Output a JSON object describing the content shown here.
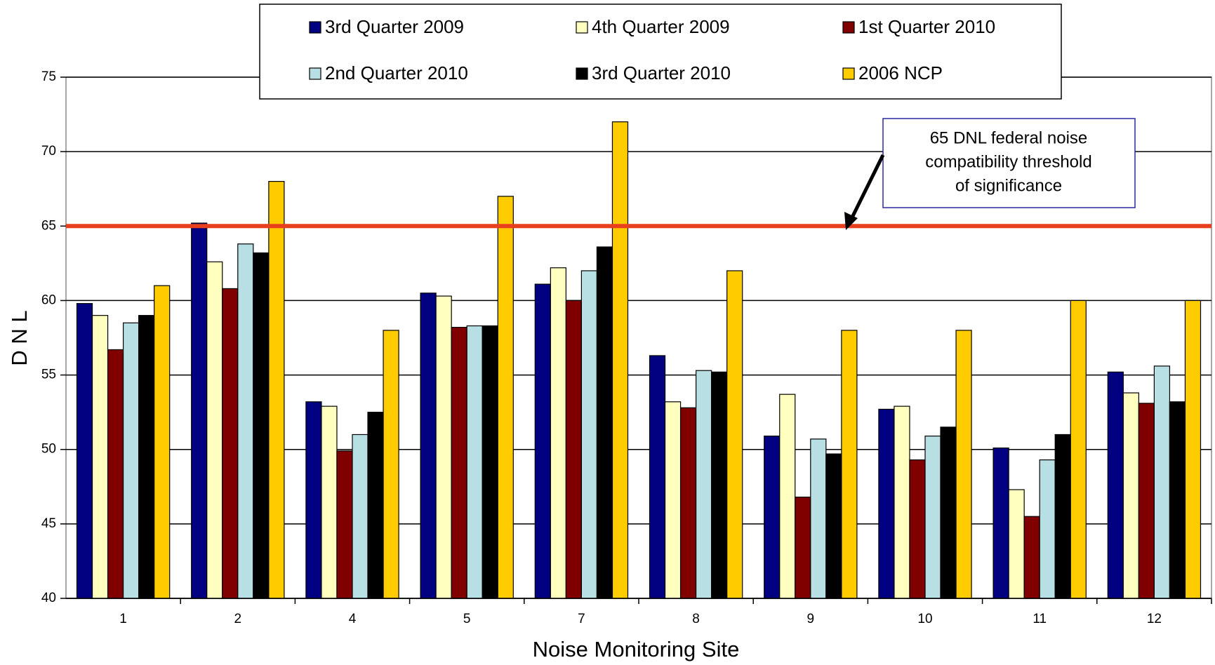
{
  "chart_data": {
    "type": "bar",
    "x_label": "Noise Monitoring Site",
    "y_label": "D N L",
    "categories": [
      "1",
      "2",
      "4",
      "5",
      "7",
      "8",
      "9",
      "10",
      "11",
      "12"
    ],
    "series": [
      {
        "name": "3rd Quarter 2009",
        "color": "#000080",
        "values": [
          59.8,
          65.2,
          53.2,
          60.5,
          61.1,
          56.3,
          50.9,
          52.7,
          50.1,
          55.2
        ]
      },
      {
        "name": "4th Quarter 2009",
        "color": "#ffffc0",
        "values": [
          59.0,
          62.6,
          52.9,
          60.3,
          62.2,
          53.2,
          53.7,
          52.9,
          47.3,
          53.8
        ]
      },
      {
        "name": "1st Quarter 2010",
        "color": "#800000",
        "values": [
          56.7,
          60.8,
          49.9,
          58.2,
          60.0,
          52.8,
          46.8,
          49.3,
          45.5,
          53.1
        ]
      },
      {
        "name": "2nd Quarter 2010",
        "color": "#b8dfe3",
        "values": [
          58.5,
          63.8,
          51.0,
          58.3,
          62.0,
          55.3,
          50.7,
          50.9,
          49.3,
          55.6
        ]
      },
      {
        "name": "3rd Quarter 2010",
        "color": "#000000",
        "values": [
          59.0,
          63.2,
          52.5,
          58.3,
          63.6,
          55.2,
          49.7,
          51.5,
          51.0,
          53.2
        ]
      },
      {
        "name": "2006 NCP",
        "color": "#ffcc00",
        "values": [
          61,
          68,
          58,
          67,
          72,
          62,
          58,
          58,
          60,
          60
        ]
      }
    ],
    "ylim": [
      40,
      75
    ],
    "yticks": [
      40,
      45,
      50,
      55,
      60,
      65,
      70,
      75
    ],
    "grid": true,
    "threshold": {
      "value": 65,
      "color": "#e8401c"
    },
    "annotation": [
      "65 DNL  federal noise",
      "compatibility threshold",
      "of significance"
    ]
  }
}
